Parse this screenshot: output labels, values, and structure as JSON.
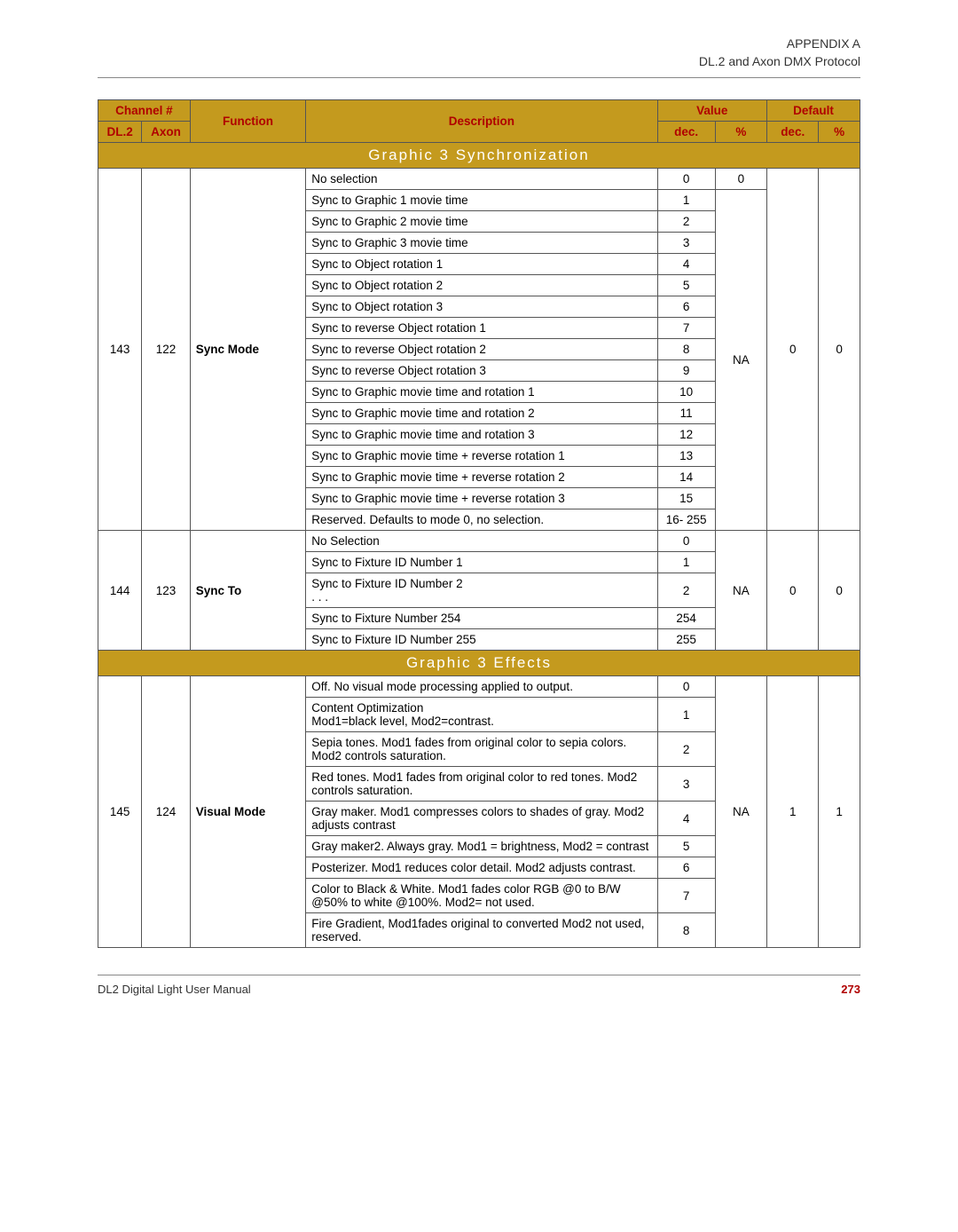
{
  "header": {
    "line1": "APPENDIX  A",
    "line2": "DL.2 and Axon DMX Protocol"
  },
  "table": {
    "head": {
      "channel": "Channel #",
      "dl2": "DL.2",
      "axon": "Axon",
      "function": "Function",
      "description": "Description",
      "value": "Value",
      "default": "Default",
      "dec": "dec.",
      "pct": "%"
    },
    "sections": [
      {
        "title": "Graphic 3 Synchronization",
        "groups": [
          {
            "dl2": "143",
            "axon": "122",
            "func": "Sync Mode",
            "valpct": "NA",
            "defdec": "0",
            "defpct": "0",
            "rows": [
              {
                "desc": "No selection",
                "valdec": "0",
                "valpct": "0"
              },
              {
                "desc": "Sync to Graphic 1 movie time",
                "valdec": "1"
              },
              {
                "desc": "Sync to Graphic 2 movie time",
                "valdec": "2"
              },
              {
                "desc": "Sync to Graphic 3 movie time",
                "valdec": "3"
              },
              {
                "desc": "Sync to Object rotation 1",
                "valdec": "4"
              },
              {
                "desc": "Sync to Object rotation 2",
                "valdec": "5"
              },
              {
                "desc": "Sync to Object rotation 3",
                "valdec": "6"
              },
              {
                "desc": "Sync to reverse Object rotation 1",
                "valdec": "7"
              },
              {
                "desc": "Sync to reverse Object rotation 2",
                "valdec": "8"
              },
              {
                "desc": "Sync to reverse Object rotation 3",
                "valdec": "9"
              },
              {
                "desc": "Sync to Graphic movie time and rotation 1",
                "valdec": "10"
              },
              {
                "desc": "Sync to Graphic movie time and rotation 2",
                "valdec": "11"
              },
              {
                "desc": "Sync to Graphic movie time and rotation 3",
                "valdec": "12"
              },
              {
                "desc": "Sync to Graphic movie time + reverse rotation 1",
                "valdec": "13"
              },
              {
                "desc": "Sync to Graphic movie time + reverse rotation 2",
                "valdec": "14"
              },
              {
                "desc": "Sync to Graphic movie time + reverse rotation 3",
                "valdec": "15"
              },
              {
                "desc": "Reserved.  Defaults to mode 0, no selection.",
                "valdec": "16- 255"
              }
            ]
          },
          {
            "dl2": "144",
            "axon": "123",
            "func": "Sync To",
            "valpct": "NA",
            "defdec": "0",
            "defpct": "0",
            "rows": [
              {
                "desc": "No Selection",
                "valdec": "0"
              },
              {
                "desc": "Sync to Fixture ID Number 1",
                "valdec": "1"
              },
              {
                "desc": "Sync to Fixture ID Number 2\n. . .",
                "valdec": "2"
              },
              {
                "desc": "Sync to Fixture Number 254",
                "valdec": "254"
              },
              {
                "desc": "Sync to Fixture ID Number 255",
                "valdec": "255"
              }
            ]
          }
        ]
      },
      {
        "title": "Graphic 3 Effects",
        "groups": [
          {
            "dl2": "145",
            "axon": "124",
            "func": "Visual Mode",
            "valpct": "NA",
            "defdec": "1",
            "defpct": "1",
            "rows": [
              {
                "desc": "Off. No visual mode processing applied to output.",
                "valdec": "0"
              },
              {
                "desc": "Content Optimization\nMod1=black level, Mod2=contrast.",
                "valdec": "1"
              },
              {
                "desc": "Sepia tones. Mod1 fades from original color to sepia colors. Mod2 controls saturation.",
                "valdec": "2"
              },
              {
                "desc": "Red tones. Mod1 fades from original color to red tones.  Mod2 controls saturation.",
                "valdec": "3"
              },
              {
                "desc": "Gray maker. Mod1 compresses colors to shades of gray. Mod2 adjusts contrast",
                "valdec": "4"
              },
              {
                "desc": "Gray maker2. Always gray. Mod1 = brightness, Mod2 = contrast",
                "valdec": "5"
              },
              {
                "desc": "Posterizer. Mod1 reduces color detail. Mod2 adjusts contrast.",
                "valdec": "6"
              },
              {
                "desc": "Color to Black & White. Mod1 fades color RGB @0 to B/W @50% to white @100%. Mod2= not used.",
                "valdec": "7"
              },
              {
                "desc": "Fire Gradient, Mod1fades original to converted Mod2 not used, reserved.",
                "valdec": "8"
              }
            ]
          }
        ]
      }
    ]
  },
  "footer": {
    "left": "DL2 Digital Light User Manual",
    "page": "273"
  }
}
